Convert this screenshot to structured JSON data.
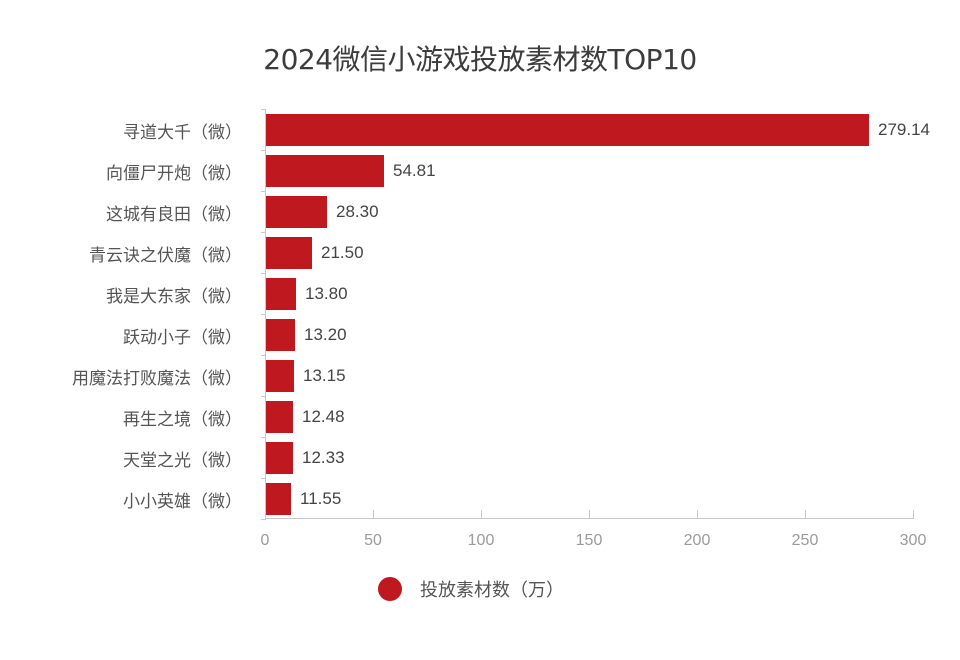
{
  "title": "2024微信小游戏投放素材数TOP10",
  "legend": {
    "label": "投放素材数（万）",
    "color": "#c0181f"
  },
  "x_axis": {
    "ticks": [
      "0",
      "50",
      "100",
      "150",
      "200",
      "250",
      "300"
    ]
  },
  "chart_data": {
    "type": "bar",
    "orientation": "horizontal",
    "title": "2024微信小游戏投放素材数TOP10",
    "xlabel": "",
    "ylabel": "",
    "xlim": [
      0,
      300
    ],
    "x_ticks": [
      0,
      50,
      100,
      150,
      200,
      250,
      300
    ],
    "grid": false,
    "legend_position": "bottom",
    "categories": [
      "寻道大千（微）",
      "向僵尸开炮（微）",
      "这城有良田（微）",
      "青云诀之伏魔（微）",
      "我是大东家（微）",
      "跃动小子（微）",
      "用魔法打败魔法（微）",
      "再生之境（微）",
      "天堂之光（微）",
      "小小英雄（微）"
    ],
    "series": [
      {
        "name": "投放素材数（万）",
        "color": "#c0181f",
        "values": [
          279.14,
          54.81,
          28.3,
          21.5,
          13.8,
          13.2,
          13.15,
          12.48,
          12.33,
          11.55
        ]
      }
    ],
    "value_labels": [
      "279.14",
      "54.81",
      "28.30",
      "21.50",
      "13.80",
      "13.20",
      "13.15",
      "12.48",
      "12.33",
      "11.55"
    ]
  }
}
